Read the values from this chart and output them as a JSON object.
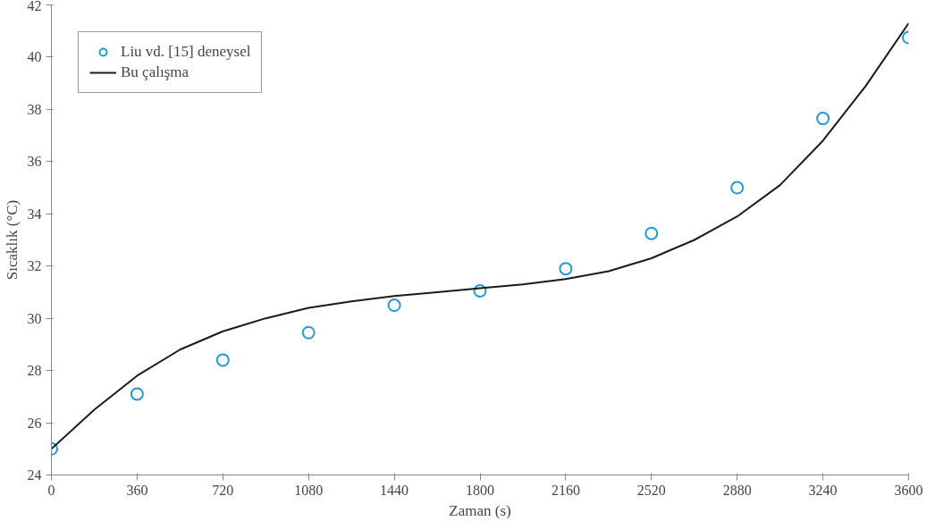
{
  "chart_data": {
    "type": "scatter",
    "xlabel": "Zaman (s)",
    "ylabel": "Sıcaklık (°C)",
    "xlim": [
      0,
      3600
    ],
    "xticks": [
      0,
      360,
      720,
      1080,
      1440,
      1800,
      2160,
      2520,
      2880,
      3240,
      3600
    ],
    "ylim": [
      24,
      42
    ],
    "yticks": [
      24,
      26,
      28,
      30,
      32,
      34,
      36,
      38,
      40,
      42
    ],
    "grid": false,
    "legend": "top left",
    "series": [
      {
        "name": "Liu vd. [15] deneysel",
        "marker": "circle",
        "color": "#1f9bd1",
        "x": [
          0,
          360,
          720,
          1080,
          1440,
          1800,
          2160,
          2520,
          2880,
          3240,
          3600
        ],
        "values": [
          25.0,
          27.1,
          28.4,
          29.45,
          30.5,
          31.05,
          31.9,
          33.25,
          35.0,
          37.65,
          40.75
        ]
      },
      {
        "name": "Bu çalışma",
        "type": "line",
        "marker": "none",
        "line_style": "solid",
        "color": "#1a1a1a",
        "x": [
          0,
          180,
          360,
          540,
          720,
          900,
          1080,
          1260,
          1440,
          1620,
          1800,
          1980,
          2160,
          2340,
          2520,
          2700,
          2880,
          3060,
          3240,
          3420,
          3600
        ],
        "values": [
          25.0,
          26.5,
          27.8,
          28.8,
          29.5,
          30.0,
          30.4,
          30.65,
          30.85,
          31.0,
          31.15,
          31.3,
          31.5,
          31.8,
          32.3,
          33.0,
          33.9,
          35.1,
          36.8,
          38.9,
          41.3
        ]
      }
    ]
  }
}
